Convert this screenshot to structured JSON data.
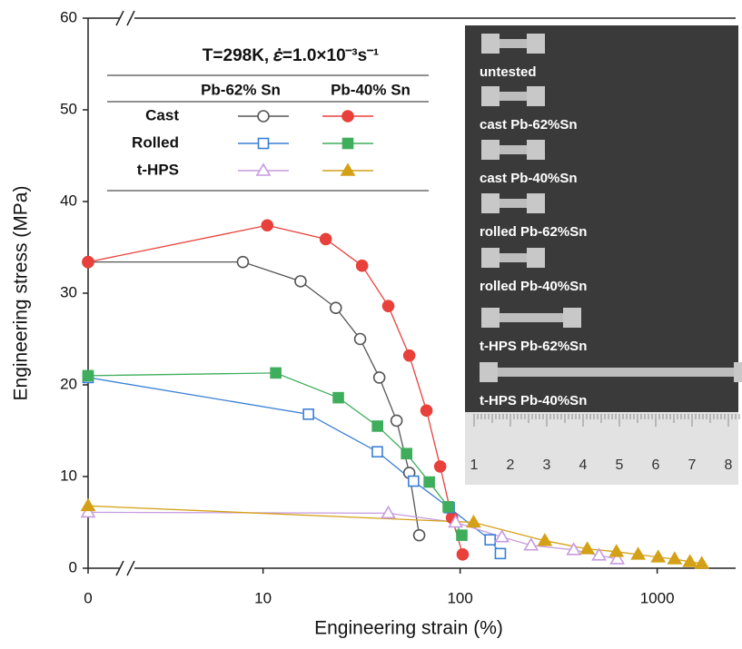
{
  "chart_data": {
    "type": "line",
    "xlabel": "Engineering strain (%)",
    "ylabel": "Engineering stress (MPa)",
    "annotation": "T=298K, 𝜀̇=1.0×10⁻³s⁻¹",
    "xscale": "log",
    "xlim": [
      0,
      2500
    ],
    "xticks": [
      0,
      10,
      100,
      1000
    ],
    "ylim": [
      0,
      60
    ],
    "yticks": [
      0,
      10,
      20,
      30,
      40,
      50,
      60
    ],
    "legend": {
      "columns": [
        "Pb-62% Sn",
        "Pb-40% Sn"
      ],
      "rows": [
        "Cast",
        "Rolled",
        "t-HPS"
      ]
    },
    "series": [
      {
        "color": "#555555",
        "marker": "circle",
        "filled": false,
        "x": [
          0,
          7.9,
          15.5,
          23.4,
          31.1,
          38.9,
          47.6,
          55.2,
          62
        ],
        "values": [
          33.4,
          33.4,
          31.3,
          28.4,
          25.0,
          20.8,
          16.1,
          10.4,
          3.6
        ]
      },
      {
        "color": "#e8403a",
        "marker": "circle",
        "filled": true,
        "x": [
          0,
          10.5,
          20.8,
          31.8,
          43.2,
          55.2,
          67.5,
          79.2,
          90.9,
          103
        ],
        "values": [
          33.4,
          37.4,
          35.9,
          33.0,
          28.6,
          23.2,
          17.2,
          11.1,
          5.5,
          1.5
        ]
      },
      {
        "color": "#3a7fd5",
        "marker": "square",
        "filled": false,
        "x": [
          0,
          17,
          38,
          58,
          88,
          142,
          160
        ],
        "values": [
          20.8,
          16.8,
          12.7,
          9.5,
          6.6,
          3.1,
          1.6
        ]
      },
      {
        "color": "#3fae5c",
        "marker": "square",
        "filled": true,
        "x": [
          0,
          11.6,
          24.1,
          38.1,
          53.5,
          69.7,
          87,
          102
        ],
        "values": [
          21.0,
          21.3,
          18.6,
          15.5,
          12.5,
          9.4,
          6.7,
          3.6
        ]
      },
      {
        "color": "#c69be0",
        "marker": "triangle",
        "filled": false,
        "x": [
          0,
          43.2,
          94.8,
          163,
          229,
          377,
          507,
          627
        ],
        "values": [
          6.1,
          6.0,
          5.0,
          3.4,
          2.5,
          2.0,
          1.4,
          1.0
        ]
      },
      {
        "color": "#d4a017",
        "marker": "triangle",
        "filled": true,
        "x": [
          0,
          117,
          269,
          442,
          621,
          800,
          1011,
          1225,
          1466,
          1683
        ],
        "values": [
          6.8,
          5.0,
          3.0,
          2.1,
          1.8,
          1.5,
          1.2,
          1.0,
          0.7,
          0.5
        ]
      }
    ]
  },
  "inset": {
    "labels": [
      "untested",
      "cast Pb-62%Sn",
      "cast Pb-40%Sn",
      "rolled Pb-62%Sn",
      "rolled Pb-40%Sn",
      "t-HPS Pb-62%Sn",
      "t-HPS Pb-40%Sn"
    ],
    "ruler": [
      "1",
      "2",
      "3",
      "4",
      "5",
      "6",
      "7",
      "8"
    ]
  }
}
